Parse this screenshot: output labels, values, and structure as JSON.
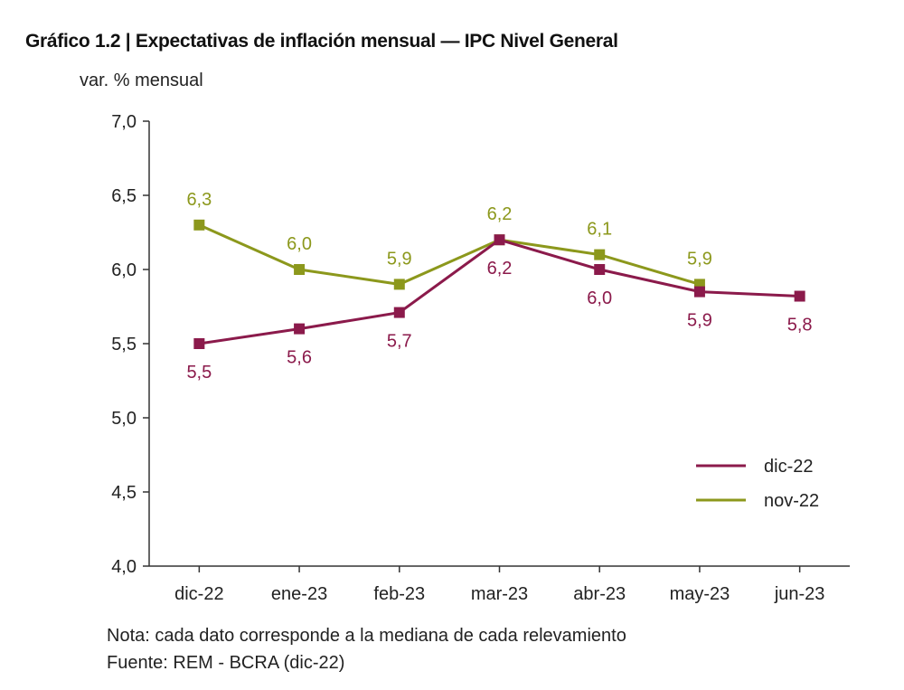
{
  "chart_data": {
    "type": "line",
    "title": "Gráfico 1.2 | Expectativas de inflación mensual — IPC Nivel General",
    "ylabel": "var. % mensual",
    "xlabel": "",
    "categories": [
      "dic-22",
      "ene-23",
      "feb-23",
      "mar-23",
      "abr-23",
      "may-23",
      "jun-23"
    ],
    "ylim": [
      4.0,
      7.0
    ],
    "yticks": [
      "4,0",
      "4,5",
      "5,0",
      "5,5",
      "6,0",
      "6,5",
      "7,0"
    ],
    "ytick_values": [
      4.0,
      4.5,
      5.0,
      5.5,
      6.0,
      6.5,
      7.0
    ],
    "grid": false,
    "legend_position": "bottom-right",
    "series": [
      {
        "name": "dic-22",
        "color": "#8b1a4b",
        "values": [
          5.5,
          5.6,
          5.71,
          6.2,
          6.0,
          5.85,
          5.82
        ],
        "labels": [
          "5,5",
          "5,6",
          "5,7",
          "6,2",
          "6,0",
          "5,9",
          "5,8"
        ],
        "label_position": "below"
      },
      {
        "name": "nov-22",
        "color": "#8c981c",
        "values": [
          6.3,
          6.0,
          5.9,
          6.2,
          6.1,
          5.9,
          null
        ],
        "labels": [
          "6,3",
          "6,0",
          "5,9",
          "6,2",
          "6,1",
          "5,9",
          null
        ],
        "label_position": "above"
      }
    ],
    "notes": [
      "Nota: cada dato corresponde a la mediana de cada relevamiento",
      "Fuente: REM - BCRA (dic-22)"
    ]
  }
}
